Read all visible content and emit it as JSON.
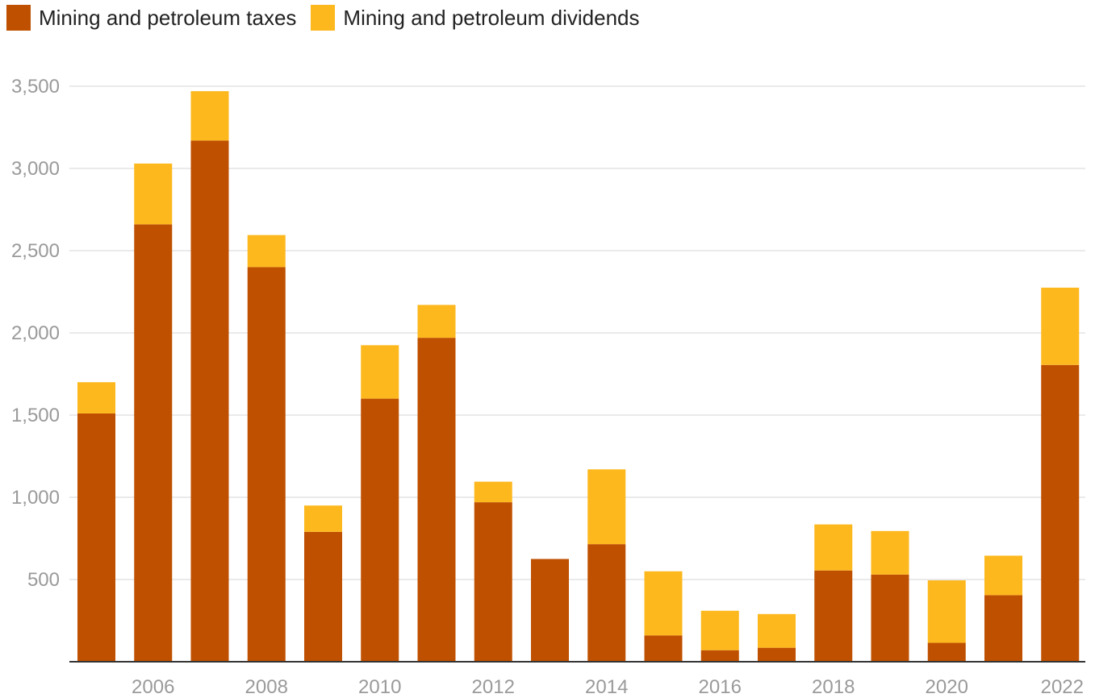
{
  "chart_data": {
    "type": "bar",
    "stacked": true,
    "title": "",
    "xlabel": "",
    "ylabel": "",
    "ylim": [
      0,
      3500
    ],
    "yticks": [
      500,
      1000,
      1500,
      2000,
      2500,
      3000,
      3500
    ],
    "ytick_labels": [
      "500",
      "1,000",
      "1,500",
      "2,000",
      "2,500",
      "3,000",
      "3,500"
    ],
    "xtick_labels": [
      "2006",
      "2008",
      "2010",
      "2012",
      "2014",
      "2016",
      "2018",
      "2020",
      "2022"
    ],
    "categories": [
      2005,
      2006,
      2007,
      2008,
      2009,
      2010,
      2011,
      2012,
      2013,
      2014,
      2015,
      2016,
      2017,
      2018,
      2019,
      2020,
      2021,
      2022
    ],
    "grid": true,
    "legend_position": "top-left",
    "series": [
      {
        "name": "Mining and petroleum taxes",
        "color": "#bf5000",
        "values": [
          1510,
          2660,
          3170,
          2400,
          790,
          1600,
          1970,
          970,
          625,
          715,
          160,
          70,
          85,
          555,
          530,
          115,
          405,
          1805
        ]
      },
      {
        "name": "Mining and petroleum dividends",
        "color": "#fdb81e",
        "values": [
          190,
          370,
          300,
          195,
          160,
          325,
          200,
          125,
          0,
          455,
          390,
          240,
          205,
          280,
          265,
          380,
          240,
          470
        ]
      }
    ]
  }
}
